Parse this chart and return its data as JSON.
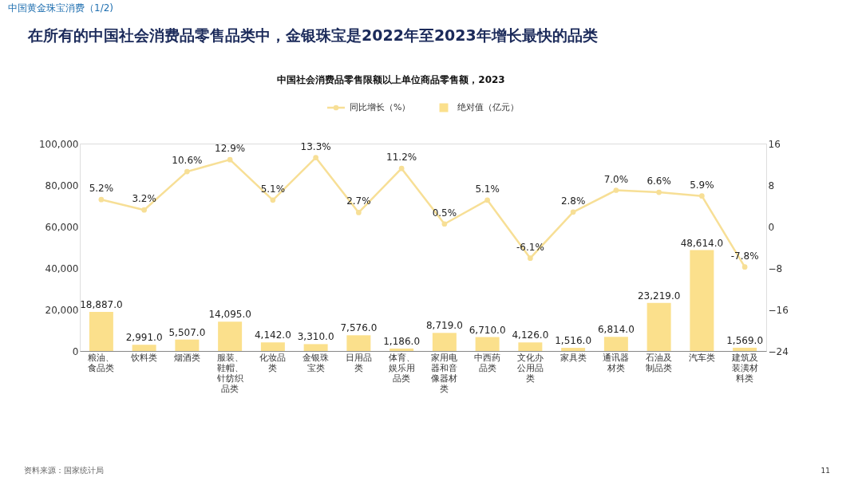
{
  "chart_data": {
    "type": "bar",
    "title": "在所有的中国社会消费品零售品类中，金银珠宝是2022年至2023年增长最快的品类",
    "subtitle": "中国社会消费品零售限额以上单位商品零售额，2023",
    "categories": [
      "粮油、食品类",
      "饮料类",
      "烟酒类",
      "服装、鞋帽、针纺织品类",
      "化妆品类",
      "金银珠宝类",
      "日用品类",
      "体育、娱乐用品类",
      "家用电器和音像器材类",
      "中西药品类",
      "文化办公用品类",
      "家具类",
      "通讯器材类",
      "石油及制品类",
      "汽车类",
      "建筑及装潢材料类"
    ],
    "series": [
      {
        "name": "绝对值（亿元）",
        "color": "#fbe08c",
        "values": [
          18887.0,
          2991.0,
          5507.0,
          14095.0,
          4142.0,
          3310.0,
          7576.0,
          1186.0,
          8719.0,
          6710.0,
          4126.0,
          1516.0,
          6814.0,
          23219.0,
          48614.0,
          1569.0
        ],
        "value_labels": [
          "18,887.0",
          "2,991.0",
          "5,507.0",
          "14,095.0",
          "4,142.0",
          "3,310.0",
          "7,576.0",
          "1,186.0",
          "8,719.0",
          "6,710.0",
          "4,126.0",
          "1,516.0",
          "6,814.0",
          "23,219.0",
          "48,614.0",
          "1,569.0"
        ]
      },
      {
        "name": "同比增长（%）",
        "type": "line",
        "axis": "y2",
        "color": "#f7df96",
        "values": [
          5.2,
          3.2,
          10.6,
          12.9,
          5.1,
          13.3,
          2.7,
          11.2,
          0.5,
          5.1,
          -6.1,
          2.8,
          7.0,
          6.6,
          5.9,
          -7.8
        ],
        "value_labels": [
          "5.2%",
          "3.2%",
          "10.6%",
          "12.9%",
          "5.1%",
          "13.3%",
          "2.7%",
          "11.2%",
          "0.5%",
          "5.1%",
          "-6.1%",
          "2.8%",
          "7.0%",
          "6.6%",
          "5.9%",
          "-7.8%"
        ]
      }
    ],
    "ylim": [
      0,
      100000
    ],
    "yticks": [
      0,
      {
        "value": 20000,
        "label": "20,000"
      },
      {
        "value": 40000,
        "label": "40,000"
      },
      {
        "value": 60000,
        "label": "60,000"
      },
      {
        "value": 80000,
        "label": "80,000"
      },
      {
        "value": 100000,
        "label": "100,000"
      }
    ],
    "y2lim": [
      -24,
      16
    ],
    "y2ticks": [
      -24,
      -16,
      -8,
      0,
      8,
      16
    ],
    "legend": "top",
    "marker": "circle",
    "grid": false,
    "annotations": [
      "中国黄金珠宝消费（1/2)",
      "资料来源：国家统计局",
      "11"
    ]
  }
}
